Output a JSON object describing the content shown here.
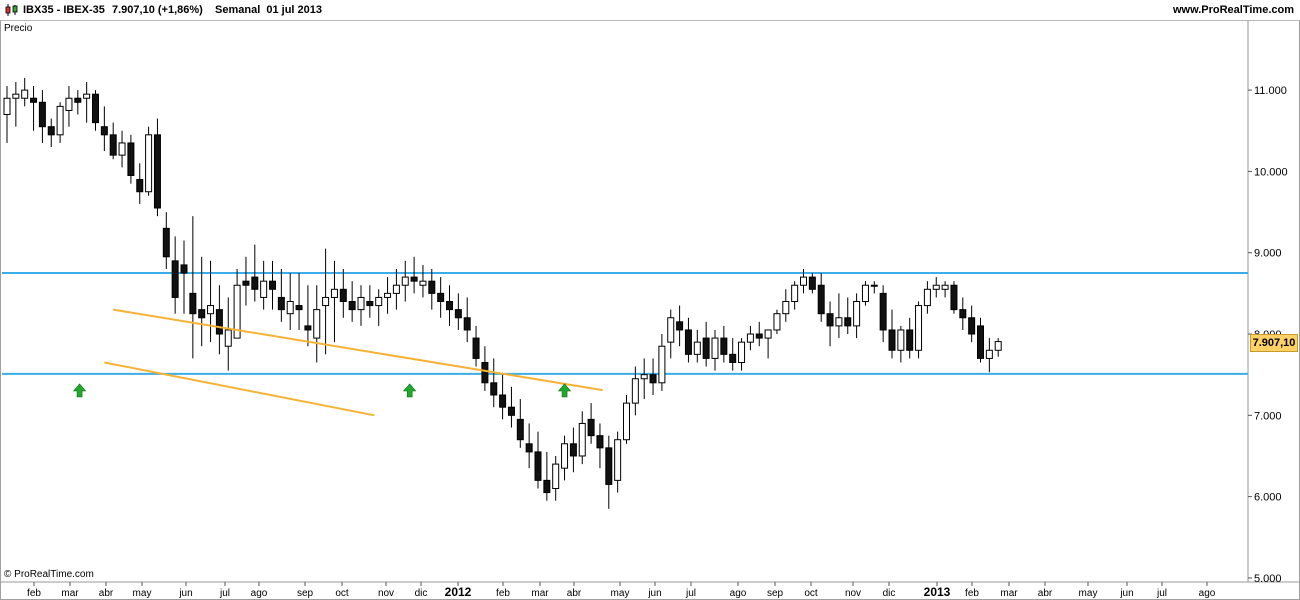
{
  "header": {
    "symbol": "IBX35 - IBEX-35",
    "price_change": "7.907,10 (+1,86%)",
    "period": "Semanal  01 jul 2013",
    "website": "www.ProRealTime.com"
  },
  "panel_label": "Precio",
  "copyright": "© ProRealTime.com",
  "colors": {
    "bull_fill": "#ffffff",
    "bear_fill": "#111111",
    "wick": "#000000",
    "support_line": "#3aaee8",
    "channel_line": "#f7b234",
    "arrow": "#1faa2b",
    "badge": "#ffd166"
  },
  "chart_data": {
    "type": "candlestick",
    "timeframe": "weekly",
    "x_axis_labels": [
      "feb",
      "mar",
      "abr",
      "may",
      "jun",
      "jul",
      "ago",
      "sep",
      "oct",
      "nov",
      "dic",
      "2012",
      "feb",
      "mar",
      "abr",
      "may",
      "jun",
      "jul",
      "ago",
      "sep",
      "oct",
      "nov",
      "dic",
      "2013",
      "feb",
      "mar",
      "abr",
      "may",
      "jun",
      "jul",
      "ago"
    ],
    "y_axis": {
      "ticks": [
        5000,
        6000,
        7000,
        8000,
        9000,
        10000,
        11000
      ],
      "tick_labels": [
        "5.000",
        "6.000",
        "7.000",
        "8.000",
        "9.000",
        "10.000",
        "11.000"
      ],
      "range": [
        4950,
        11850
      ]
    },
    "last_price": 7907.1,
    "last_price_label": "7.907,10",
    "horizontal_lines": [
      {
        "value": 8750,
        "color": "#3aaee8"
      },
      {
        "value": 7510,
        "color": "#3aaee8"
      }
    ],
    "trend_lines": [
      {
        "from": [
          12,
          8300
        ],
        "to": [
          67.3,
          7310
        ],
        "color": "#f7b234"
      },
      {
        "from": [
          11,
          7650
        ],
        "to": [
          41.5,
          7000
        ],
        "color": "#f7b234"
      }
    ],
    "markers": [
      {
        "type": "up-arrow",
        "bar": 8.2,
        "value": 7300
      },
      {
        "type": "up-arrow",
        "bar": 45.5,
        "value": 7300
      },
      {
        "type": "up-arrow",
        "bar": 63.0,
        "value": 7300
      }
    ],
    "candles": [
      [
        10700,
        11050,
        10350,
        10900
      ],
      [
        10900,
        11100,
        10550,
        10950
      ],
      [
        10900,
        11150,
        10800,
        11000
      ],
      [
        10900,
        11050,
        10500,
        10850
      ],
      [
        10850,
        11000,
        10350,
        10550
      ],
      [
        10550,
        10650,
        10300,
        10450
      ],
      [
        10450,
        10850,
        10350,
        10800
      ],
      [
        10750,
        11050,
        10550,
        10900
      ],
      [
        10900,
        11000,
        10700,
        10850
      ],
      [
        10900,
        11100,
        10600,
        10950
      ],
      [
        10950,
        11000,
        10500,
        10600
      ],
      [
        10550,
        10800,
        10250,
        10450
      ],
      [
        10450,
        10600,
        10150,
        10200
      ],
      [
        10200,
        10500,
        10050,
        10350
      ],
      [
        10350,
        10450,
        9850,
        9950
      ],
      [
        9900,
        10100,
        9600,
        9750
      ],
      [
        9750,
        10550,
        9700,
        10450
      ],
      [
        10450,
        10650,
        9450,
        9550
      ],
      [
        9300,
        9500,
        8800,
        8950
      ],
      [
        8900,
        9200,
        8250,
        8450
      ],
      [
        8850,
        9150,
        8250,
        8750
      ],
      [
        8500,
        9450,
        7700,
        8250
      ],
      [
        8300,
        8950,
        7850,
        8200
      ],
      [
        8250,
        8900,
        7900,
        8350
      ],
      [
        8300,
        8600,
        7750,
        8000
      ],
      [
        7850,
        8450,
        7550,
        8050
      ],
      [
        7950,
        8800,
        7950,
        8600
      ],
      [
        8650,
        8950,
        8350,
        8600
      ],
      [
        8700,
        9100,
        8400,
        8550
      ],
      [
        8450,
        8900,
        8300,
        8650
      ],
      [
        8650,
        8900,
        8300,
        8550
      ],
      [
        8450,
        8800,
        8150,
        8300
      ],
      [
        8250,
        8750,
        8050,
        8400
      ],
      [
        8350,
        8750,
        8050,
        8300
      ],
      [
        8100,
        8600,
        7850,
        8050
      ],
      [
        7950,
        8600,
        7650,
        8300
      ],
      [
        8350,
        9050,
        7750,
        8450
      ],
      [
        8450,
        8900,
        7900,
        8550
      ],
      [
        8550,
        8800,
        8200,
        8400
      ],
      [
        8400,
        8650,
        8150,
        8300
      ],
      [
        8300,
        8600,
        8100,
        8450
      ],
      [
        8400,
        8600,
        8200,
        8350
      ],
      [
        8350,
        8550,
        8100,
        8450
      ],
      [
        8450,
        8700,
        8250,
        8500
      ],
      [
        8500,
        8800,
        8300,
        8600
      ],
      [
        8600,
        8900,
        8400,
        8700
      ],
      [
        8700,
        8950,
        8500,
        8650
      ],
      [
        8600,
        8850,
        8450,
        8650
      ],
      [
        8650,
        8800,
        8300,
        8500
      ],
      [
        8500,
        8700,
        8200,
        8400
      ],
      [
        8400,
        8600,
        8100,
        8300
      ],
      [
        8300,
        8500,
        8050,
        8200
      ],
      [
        8200,
        8450,
        7900,
        8050
      ],
      [
        7950,
        8100,
        7600,
        7700
      ],
      [
        7650,
        7850,
        7300,
        7400
      ],
      [
        7400,
        7700,
        7100,
        7250
      ],
      [
        7250,
        7500,
        6950,
        7100
      ],
      [
        7100,
        7350,
        6850,
        7000
      ],
      [
        6950,
        7200,
        6600,
        6700
      ],
      [
        6650,
        6900,
        6350,
        6550
      ],
      [
        6550,
        6800,
        6100,
        6200
      ],
      [
        6200,
        6550,
        5950,
        6050
      ],
      [
        6100,
        6500,
        5950,
        6400
      ],
      [
        6350,
        6750,
        6200,
        6650
      ],
      [
        6650,
        6850,
        6300,
        6500
      ],
      [
        6500,
        7050,
        6400,
        6900
      ],
      [
        6950,
        7150,
        6650,
        6750
      ],
      [
        6750,
        6900,
        6350,
        6600
      ],
      [
        6600,
        6750,
        5850,
        6150
      ],
      [
        6200,
        6800,
        6050,
        6700
      ],
      [
        6700,
        7250,
        6650,
        7150
      ],
      [
        7150,
        7600,
        7000,
        7450
      ],
      [
        7450,
        7700,
        7200,
        7500
      ],
      [
        7500,
        7700,
        7250,
        7400
      ],
      [
        7400,
        8000,
        7300,
        7850
      ],
      [
        7900,
        8300,
        7700,
        8200
      ],
      [
        8150,
        8350,
        7850,
        8050
      ],
      [
        8050,
        8200,
        7650,
        7750
      ],
      [
        7750,
        8050,
        7650,
        7900
      ],
      [
        7950,
        8150,
        7600,
        7700
      ],
      [
        7700,
        8050,
        7550,
        7950
      ],
      [
        7950,
        8100,
        7650,
        7750
      ],
      [
        7750,
        7950,
        7550,
        7650
      ],
      [
        7650,
        7950,
        7550,
        7900
      ],
      [
        7900,
        8100,
        7800,
        8000
      ],
      [
        8000,
        8150,
        7850,
        7950
      ],
      [
        7950,
        8050,
        7700,
        8050
      ],
      [
        8050,
        8300,
        8000,
        8250
      ],
      [
        8250,
        8550,
        8150,
        8400
      ],
      [
        8400,
        8650,
        8300,
        8600
      ],
      [
        8600,
        8800,
        8500,
        8700
      ],
      [
        8700,
        8750,
        8500,
        8550
      ],
      [
        8600,
        8750,
        8150,
        8250
      ],
      [
        8250,
        8400,
        7850,
        8100
      ],
      [
        8100,
        8500,
        7950,
        8200
      ],
      [
        8200,
        8450,
        8000,
        8100
      ],
      [
        8100,
        8500,
        7950,
        8400
      ],
      [
        8400,
        8650,
        8350,
        8600
      ],
      [
        8600,
        8650,
        8500,
        8600
      ],
      [
        8500,
        8600,
        7900,
        8050
      ],
      [
        8050,
        8300,
        7700,
        7800
      ],
      [
        7800,
        8100,
        7650,
        8050
      ],
      [
        8050,
        8200,
        7700,
        7800
      ],
      [
        7800,
        8400,
        7700,
        8350
      ],
      [
        8350,
        8650,
        8250,
        8550
      ],
      [
        8550,
        8700,
        8450,
        8600
      ],
      [
        8550,
        8650,
        8450,
        8600
      ],
      [
        8600,
        8650,
        8250,
        8300
      ],
      [
        8300,
        8450,
        8050,
        8200
      ],
      [
        8200,
        8350,
        7900,
        8000
      ],
      [
        8100,
        8200,
        7650,
        7700
      ],
      [
        7700,
        7950,
        7530,
        7800
      ],
      [
        7800,
        7950,
        7720,
        7907
      ]
    ]
  }
}
